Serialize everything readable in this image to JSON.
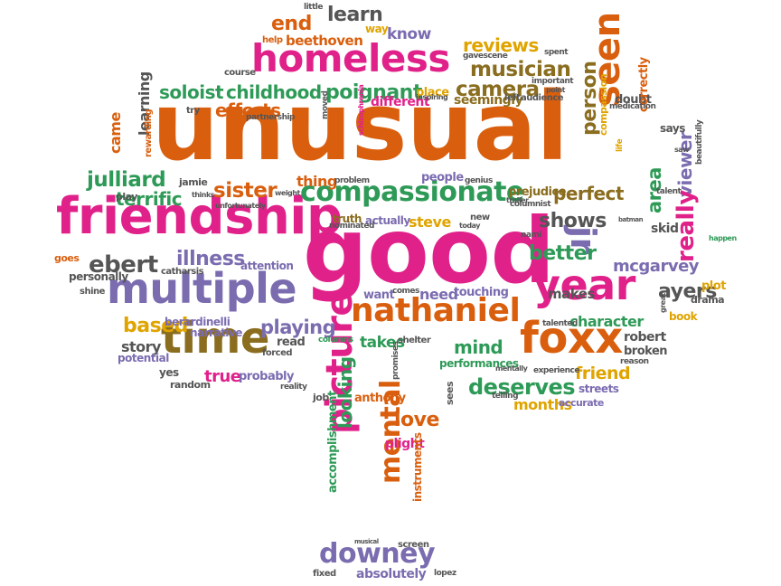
{
  "colors": {
    "orange": "#d95f0e",
    "pink": "#e0218a",
    "purple": "#7b6cb0",
    "green": "#2e9a57",
    "gold": "#e0a400",
    "brown": "#8a6d1f",
    "gray": "#555555"
  },
  "words": [
    {
      "text": "unusual",
      "color": "orange"
    },
    {
      "text": "good",
      "color": "pink"
    },
    {
      "text": "friendship",
      "color": "pink"
    },
    {
      "text": "multiple",
      "color": "purple"
    },
    {
      "text": "homeless",
      "color": "pink"
    },
    {
      "text": "time",
      "color": "brown"
    },
    {
      "text": "year",
      "color": "pink"
    },
    {
      "text": "foxx",
      "color": "orange"
    },
    {
      "text": "nathaniel",
      "color": "orange"
    },
    {
      "text": "seen",
      "color": "orange"
    },
    {
      "text": "compassionate",
      "color": "green"
    },
    {
      "text": "picture",
      "color": "pink"
    },
    {
      "text": "downey",
      "color": "purple"
    },
    {
      "text": "jr",
      "color": "purple"
    },
    {
      "text": "mental",
      "color": "orange"
    },
    {
      "text": "ebert",
      "color": "gray"
    },
    {
      "text": "julliard",
      "color": "green"
    },
    {
      "text": "soloist",
      "color": "green"
    },
    {
      "text": "childhood",
      "color": "green"
    },
    {
      "text": "poignant",
      "color": "green"
    },
    {
      "text": "musician",
      "color": "brown"
    },
    {
      "text": "camera",
      "color": "brown"
    },
    {
      "text": "learn",
      "color": "gray"
    },
    {
      "text": "end",
      "color": "orange"
    },
    {
      "text": "reviews",
      "color": "gold"
    },
    {
      "text": "beethoven",
      "color": "orange"
    },
    {
      "text": "know",
      "color": "purple"
    },
    {
      "text": "illness",
      "color": "purple"
    },
    {
      "text": "sister",
      "color": "orange"
    },
    {
      "text": "terrific",
      "color": "green"
    },
    {
      "text": "efforts",
      "color": "orange"
    },
    {
      "text": "based",
      "color": "gold"
    },
    {
      "text": "playing",
      "color": "purple"
    },
    {
      "text": "character",
      "color": "green"
    },
    {
      "text": "better",
      "color": "green"
    },
    {
      "text": "shows",
      "color": "gray"
    },
    {
      "text": "perfect",
      "color": "brown"
    },
    {
      "text": "person",
      "color": "brown"
    },
    {
      "text": "viewer",
      "color": "purple"
    },
    {
      "text": "area",
      "color": "green"
    },
    {
      "text": "really",
      "color": "pink"
    },
    {
      "text": "ayers",
      "color": "gray"
    },
    {
      "text": "mcgarvey",
      "color": "purple"
    },
    {
      "text": "deserves",
      "color": "green"
    },
    {
      "text": "friend",
      "color": "gold"
    },
    {
      "text": "mind",
      "color": "green"
    },
    {
      "text": "love",
      "color": "orange"
    },
    {
      "text": "looking",
      "color": "green"
    },
    {
      "text": "months",
      "color": "gold"
    },
    {
      "text": "takes",
      "color": "green"
    },
    {
      "text": "steve",
      "color": "gold"
    },
    {
      "text": "true",
      "color": "pink"
    },
    {
      "text": "story",
      "color": "gray"
    },
    {
      "text": "read",
      "color": "gray"
    },
    {
      "text": "makes",
      "color": "gray"
    },
    {
      "text": "came",
      "color": "orange"
    },
    {
      "text": "learning",
      "color": "gray"
    },
    {
      "text": "need",
      "color": "purple"
    },
    {
      "text": "touching",
      "color": "purple"
    },
    {
      "text": "want",
      "color": "purple"
    },
    {
      "text": "robert",
      "color": "gray"
    },
    {
      "text": "broken",
      "color": "gray"
    },
    {
      "text": "plot",
      "color": "gold"
    },
    {
      "text": "book",
      "color": "gold"
    },
    {
      "text": "drama",
      "color": "gray"
    },
    {
      "text": "says",
      "color": "gray"
    },
    {
      "text": "doubt",
      "color": "gray"
    },
    {
      "text": "skid",
      "color": "gray"
    },
    {
      "text": "correctly",
      "color": "orange"
    },
    {
      "text": "compassion",
      "color": "gold"
    },
    {
      "text": "thing",
      "color": "orange"
    },
    {
      "text": "people",
      "color": "purple"
    },
    {
      "text": "narrative",
      "color": "purple"
    },
    {
      "text": "probably",
      "color": "purple"
    },
    {
      "text": "berardinelli",
      "color": "purple"
    },
    {
      "text": "seemingly",
      "color": "brown"
    },
    {
      "text": "different",
      "color": "pink"
    },
    {
      "text": "place",
      "color": "gold"
    },
    {
      "text": "anthony",
      "color": "orange"
    },
    {
      "text": "performances",
      "color": "green"
    },
    {
      "text": "attention",
      "color": "purple"
    },
    {
      "text": "streets",
      "color": "purple"
    },
    {
      "text": "accurate",
      "color": "purple"
    },
    {
      "text": "personally",
      "color": "gray"
    },
    {
      "text": "potential",
      "color": "purple"
    },
    {
      "text": "plight",
      "color": "pink"
    },
    {
      "text": "absolutely",
      "color": "purple"
    },
    {
      "text": "accomplishment",
      "color": "green"
    },
    {
      "text": "instruments",
      "color": "orange"
    },
    {
      "text": "prejudice",
      "color": "brown"
    },
    {
      "text": "actually",
      "color": "purple"
    },
    {
      "text": "truth",
      "color": "brown"
    },
    {
      "text": "jamie",
      "color": "gray"
    },
    {
      "text": "play",
      "color": "gray"
    },
    {
      "text": "goes",
      "color": "orange"
    },
    {
      "text": "shine",
      "color": "gray"
    },
    {
      "text": "random",
      "color": "gray"
    },
    {
      "text": "yes",
      "color": "gray"
    },
    {
      "text": "job",
      "color": "gray"
    },
    {
      "text": "sees",
      "color": "gray"
    },
    {
      "text": "fixed",
      "color": "gray"
    },
    {
      "text": "lopez",
      "color": "gray"
    },
    {
      "text": "screen",
      "color": "gray"
    },
    {
      "text": "little",
      "color": "gray"
    },
    {
      "text": "way",
      "color": "gold"
    },
    {
      "text": "help",
      "color": "orange"
    },
    {
      "text": "course",
      "color": "gray"
    },
    {
      "text": "try",
      "color": "gray"
    },
    {
      "text": "spent",
      "color": "gray"
    },
    {
      "text": "gavescene",
      "color": "gray"
    },
    {
      "text": "important",
      "color": "gray"
    },
    {
      "text": "point",
      "color": "gray"
    },
    {
      "text": "inspiring",
      "color": "gray"
    },
    {
      "text": "left",
      "color": "gray"
    },
    {
      "text": "audience",
      "color": "gray"
    },
    {
      "text": "medication",
      "color": "gray"
    },
    {
      "text": "rewarding",
      "color": "orange"
    },
    {
      "text": "partnership",
      "color": "gray"
    },
    {
      "text": "moved",
      "color": "gray"
    },
    {
      "text": "schizophrenia",
      "color": "pink"
    },
    {
      "text": "weight",
      "color": "gray"
    },
    {
      "text": "unfortunately",
      "color": "gray"
    },
    {
      "text": "thinks",
      "color": "gray"
    },
    {
      "text": "problem",
      "color": "gray"
    },
    {
      "text": "genius",
      "color": "gray"
    },
    {
      "text": "nominated",
      "color": "gray"
    },
    {
      "text": "new",
      "color": "gray"
    },
    {
      "text": "today",
      "color": "gray"
    },
    {
      "text": "columnist",
      "color": "gray"
    },
    {
      "text": "trailer",
      "color": "gray"
    },
    {
      "text": "nami",
      "color": "gray"
    },
    {
      "text": "life",
      "color": "gold"
    },
    {
      "text": "saw",
      "color": "gray"
    },
    {
      "text": "beautifully",
      "color": "gray"
    },
    {
      "text": "happen",
      "color": "green"
    },
    {
      "text": "catharsis",
      "color": "gray"
    },
    {
      "text": "forced",
      "color": "gray"
    },
    {
      "text": "comes",
      "color": "gray"
    },
    {
      "text": "shelter",
      "color": "gray"
    },
    {
      "text": "columns",
      "color": "green"
    },
    {
      "text": "promises",
      "color": "gray"
    },
    {
      "text": "talented",
      "color": "gray"
    },
    {
      "text": "mentally",
      "color": "gray"
    },
    {
      "text": "experience",
      "color": "gray"
    },
    {
      "text": "telling",
      "color": "gray"
    },
    {
      "text": "reason",
      "color": "gray"
    },
    {
      "text": "great",
      "color": "gray"
    },
    {
      "text": "reality",
      "color": "gray"
    },
    {
      "text": "talent",
      "color": "gray"
    },
    {
      "text": "musical",
      "color": "gray"
    },
    {
      "text": "batman",
      "color": "gray"
    }
  ]
}
